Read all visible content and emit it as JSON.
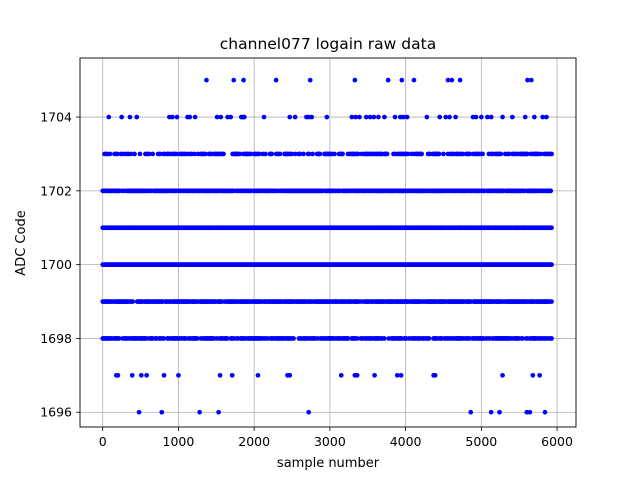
{
  "chart_data": {
    "type": "scatter",
    "title": "channel077 logain raw data",
    "xlabel": "sample number",
    "ylabel": "ADC Code",
    "xlim": [
      -300,
      6250
    ],
    "ylim": [
      1695.6,
      1705.6
    ],
    "xticks": [
      0,
      1000,
      2000,
      3000,
      4000,
      5000,
      6000
    ],
    "yticks": [
      1696,
      1698,
      1700,
      1702,
      1704
    ],
    "grid": true,
    "marker_color": "#0000ff",
    "sample_count": 5930,
    "dense_levels": [
      {
        "y": 1698,
        "density": 0.72
      },
      {
        "y": 1699,
        "density": 0.92
      },
      {
        "y": 1700,
        "density": 1.0
      },
      {
        "y": 1701,
        "density": 0.98
      },
      {
        "y": 1702,
        "density": 0.88
      },
      {
        "y": 1703,
        "density": 0.45
      }
    ],
    "sparse_points": [
      {
        "y": 1705,
        "x": [
          1370,
          1730,
          1860,
          2290,
          2740,
          3330,
          3770,
          3950,
          4110,
          4560,
          4610,
          4720,
          5610,
          5660
        ]
      },
      {
        "y": 1704,
        "x": [
          80,
          250,
          360,
          450,
          880,
          920,
          980,
          1120,
          1150,
          1220,
          1510,
          1560,
          1650,
          1690,
          1830,
          1850,
          1870,
          2130,
          2470,
          2540,
          2690,
          2720,
          2760,
          2960,
          3290,
          3340,
          3390,
          3480,
          3530,
          3580,
          3640,
          3720,
          3860,
          3930,
          3970,
          4020,
          4280,
          4450,
          4530,
          4580,
          4660,
          4890,
          4930,
          5000,
          5080,
          5130,
          5280,
          5410,
          5580,
          5700,
          5810,
          5860
        ]
      },
      {
        "y": 1697,
        "x": [
          180,
          200,
          390,
          510,
          580,
          810,
          1000,
          1550,
          1710,
          2050,
          2440,
          2470,
          3150,
          3330,
          3360,
          3590,
          3890,
          3940,
          4370,
          4390,
          5280,
          5680,
          5770
        ]
      },
      {
        "y": 1696,
        "x": [
          480,
          780,
          1280,
          1530,
          2720,
          4860,
          5130,
          5240,
          5600,
          5640,
          5840
        ]
      }
    ]
  }
}
